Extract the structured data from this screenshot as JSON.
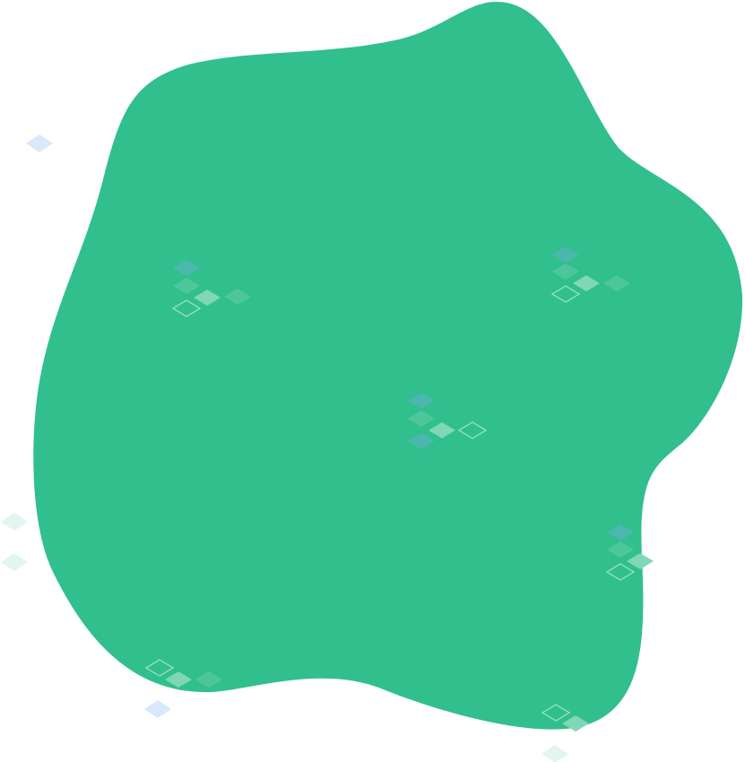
{
  "colors": {
    "background": "#ffffff",
    "blob_fill": "#31bf8e",
    "tile_blue": "#d7e9fb",
    "tile_mint": "#e3f6ee",
    "tile_teal": "#4fb6b4",
    "tile_green": "#52c79d",
    "tile_light": "#7fd7b6",
    "tile_outline": "#9be3c8"
  },
  "icons": {
    "blob": "organic-blob-shape",
    "tiles": "isometric-diamond-tile-icon"
  }
}
